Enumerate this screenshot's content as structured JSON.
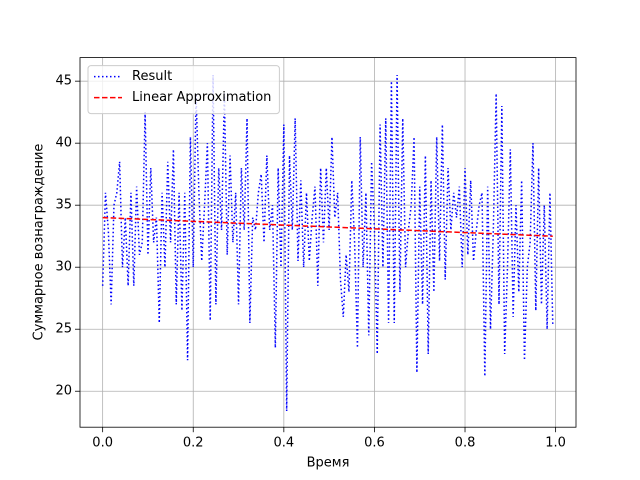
{
  "chart_data": {
    "type": "line",
    "xlabel": "Время",
    "ylabel": "Суммарное вознаграждение",
    "xlim": [
      -0.05,
      1.045
    ],
    "ylim": [
      17.1,
      46.9
    ],
    "xticks": [
      {
        "value": 0,
        "label": "0.0"
      },
      0.2,
      0.4,
      0.6,
      0.8,
      {
        "value": 1,
        "label": "1.0"
      }
    ],
    "yticks": [
      20,
      25,
      30,
      35,
      40,
      45
    ],
    "grid": true,
    "legend": "upper left",
    "series": [
      {
        "name": "Result",
        "color": "#0000ff",
        "linestyle": "dotted",
        "x": [
          0,
          0.00625,
          0.0125,
          0.01875,
          0.025,
          0.03125,
          0.0375,
          0.04375,
          0.05,
          0.05625,
          0.0625,
          0.06875,
          0.075,
          0.08125,
          0.0875,
          0.09375,
          0.1,
          0.10625,
          0.1125,
          0.11875,
          0.125,
          0.13125,
          0.1375,
          0.14375,
          0.15,
          0.15625,
          0.1625,
          0.16875,
          0.175,
          0.18125,
          0.1875,
          0.19375,
          0.2,
          0.20625,
          0.2125,
          0.21875,
          0.225,
          0.23125,
          0.2375,
          0.24375,
          0.25,
          0.25625,
          0.2625,
          0.26875,
          0.275,
          0.28125,
          0.2875,
          0.29375,
          0.3,
          0.30625,
          0.3125,
          0.31875,
          0.325,
          0.33125,
          0.3375,
          0.34375,
          0.35,
          0.35625,
          0.3625,
          0.36875,
          0.375,
          0.38125,
          0.3875,
          0.39375,
          0.4,
          0.40625,
          0.4125,
          0.41875,
          0.425,
          0.43125,
          0.4375,
          0.44375,
          0.45,
          0.45625,
          0.4625,
          0.46875,
          0.475,
          0.48125,
          0.4875,
          0.49375,
          0.5,
          0.50625,
          0.5125,
          0.51875,
          0.525,
          0.53125,
          0.5375,
          0.54375,
          0.55,
          0.55625,
          0.5625,
          0.56875,
          0.575,
          0.58125,
          0.5875,
          0.59375,
          0.6,
          0.60625,
          0.6125,
          0.61875,
          0.625,
          0.63125,
          0.6375,
          0.64375,
          0.65,
          0.65625,
          0.6625,
          0.66875,
          0.675,
          0.68125,
          0.6875,
          0.69375,
          0.7,
          0.70625,
          0.7125,
          0.71875,
          0.725,
          0.73125,
          0.7375,
          0.74375,
          0.75,
          0.75625,
          0.7625,
          0.76875,
          0.775,
          0.78125,
          0.7875,
          0.79375,
          0.8,
          0.80625,
          0.8125,
          0.81875,
          0.825,
          0.83125,
          0.8375,
          0.84375,
          0.85,
          0.85625,
          0.8625,
          0.86875,
          0.875,
          0.88125,
          0.8875,
          0.89375,
          0.9,
          0.90625,
          0.9125,
          0.91875,
          0.925,
          0.93125,
          0.9375,
          0.94375,
          0.95,
          0.95625,
          0.9625,
          0.96875,
          0.975,
          0.98125,
          0.9875,
          0.99375
        ],
        "values": [
          28.5,
          36,
          33,
          27,
          35,
          36,
          38.5,
          30,
          34,
          28.5,
          36,
          28.5,
          36.5,
          31,
          32,
          42.5,
          31,
          38,
          32,
          34,
          25.5,
          36,
          30,
          38.5,
          32,
          39.5,
          27,
          36,
          26.5,
          36,
          22.5,
          40.5,
          30,
          44,
          36,
          30.5,
          35,
          40,
          25.7,
          45.5,
          27,
          38,
          33,
          44,
          31,
          39,
          32,
          36,
          27,
          38,
          33,
          42,
          25.5,
          34,
          33,
          36,
          37.5,
          32,
          39,
          33,
          35,
          23.5,
          38,
          30,
          41.5,
          18.4,
          39,
          33,
          42,
          30.5,
          37,
          30,
          36,
          30.5,
          34,
          36.5,
          28.5,
          38,
          32,
          38,
          33,
          40.5,
          34,
          36,
          29,
          26,
          31,
          28,
          37,
          32,
          23.5,
          40.5,
          30,
          36,
          24.5,
          38.5,
          33,
          23,
          41.5,
          30,
          42,
          25.5,
          45,
          25.5,
          45.5,
          28,
          42,
          30,
          33,
          35,
          40.5,
          21.5,
          36.5,
          27,
          39,
          23,
          37,
          28,
          40.5,
          30.5,
          41.5,
          29,
          38,
          33,
          36,
          34,
          36.5,
          30,
          38,
          31,
          37,
          30.5,
          33,
          35,
          36,
          21.2,
          36.5,
          25,
          33,
          44,
          27,
          43,
          23,
          30,
          39.5,
          26,
          35,
          28,
          37,
          22.5,
          30,
          32,
          40,
          26.5,
          38,
          27,
          35,
          25,
          36,
          25.3
        ]
      },
      {
        "name": "Linear Approximation",
        "color": "#ff0000",
        "linestyle": "dashed",
        "x": [
          0,
          0.99375
        ],
        "values": [
          34.0,
          32.5
        ]
      }
    ]
  }
}
